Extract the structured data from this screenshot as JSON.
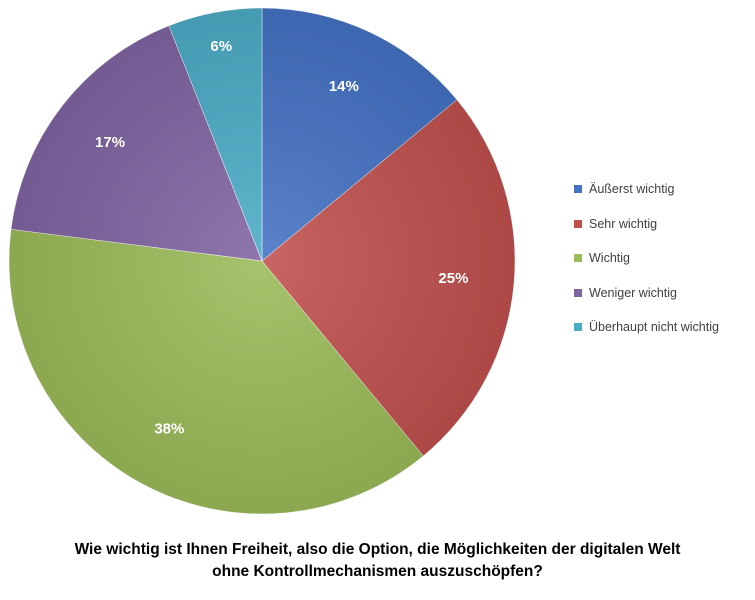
{
  "chart_data": {
    "type": "pie",
    "title_lines": [
      "Wie wichtig ist Ihnen Freiheit, also die Option, die Möglichkeiten der digitalen Welt",
      "ohne Kontrollmechanismen auszuschöpfen?"
    ],
    "categories": [
      "Äußerst wichtig",
      "Sehr wichtig",
      "Wichtig",
      "Weniger wichtig",
      "Überhaupt nicht wichtig"
    ],
    "values": [
      14,
      25,
      38,
      17,
      6
    ],
    "value_labels": [
      "14%",
      "25%",
      "38%",
      "17%",
      "6%"
    ],
    "colors": [
      "#4472C4",
      "#C0504D",
      "#9BBB59",
      "#8064A2",
      "#4BACC6"
    ],
    "legend_position": "right"
  }
}
